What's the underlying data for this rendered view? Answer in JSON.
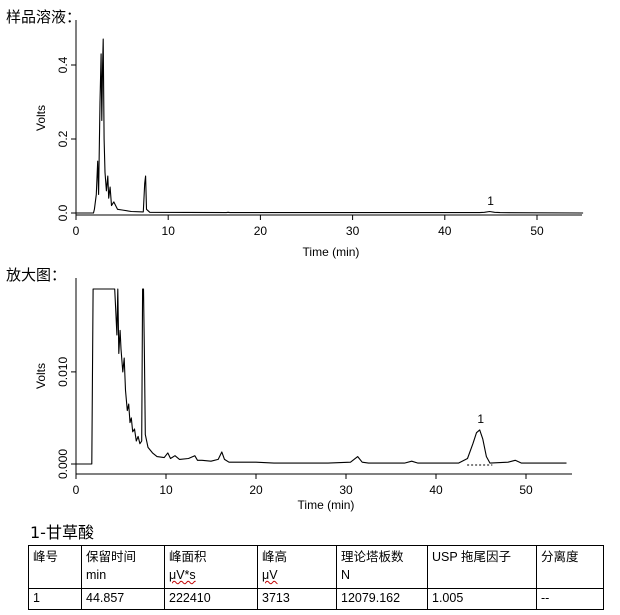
{
  "headings": {
    "sample": "样品溶液：",
    "zoom": "放大图：",
    "compound": "1-甘草酸"
  },
  "chart_data": [
    {
      "type": "line",
      "xlabel": "Time (min)",
      "ylabel": "Volts",
      "xlim": [
        0,
        55
      ],
      "ylim": [
        0,
        0.5
      ],
      "x_ticks": [
        "0",
        "10",
        "20",
        "30",
        "40",
        "50"
      ],
      "y_ticks": [
        "0.0",
        "0.2",
        "0.4"
      ],
      "peaks": [
        {
          "label": "1",
          "rt": 44.857,
          "height": 0.003
        }
      ],
      "series": [
        {
          "points": [
            [
              0,
              0.0
            ],
            [
              1.9,
              0.0
            ],
            [
              2.0,
              0.01
            ],
            [
              2.2,
              0.05
            ],
            [
              2.35,
              0.14
            ],
            [
              2.45,
              0.05
            ],
            [
              2.6,
              0.3
            ],
            [
              2.72,
              0.43
            ],
            [
              2.8,
              0.25
            ],
            [
              2.88,
              0.4
            ],
            [
              2.95,
              0.47
            ],
            [
              3.05,
              0.2
            ],
            [
              3.15,
              0.11
            ],
            [
              3.3,
              0.06
            ],
            [
              3.45,
              0.1
            ],
            [
              3.55,
              0.04
            ],
            [
              3.7,
              0.07
            ],
            [
              3.85,
              0.02
            ],
            [
              4.1,
              0.03
            ],
            [
              4.5,
              0.01
            ],
            [
              5.0,
              0.008
            ],
            [
              6.0,
              0.004
            ],
            [
              7.3,
              0.003
            ],
            [
              7.45,
              0.08
            ],
            [
              7.55,
              0.1
            ],
            [
              7.65,
              0.01
            ],
            [
              8.0,
              0.002
            ],
            [
              16.3,
              0.001
            ],
            [
              16.5,
              0.002
            ],
            [
              16.7,
              0.001
            ],
            [
              43.8,
              0.001
            ],
            [
              44.3,
              0.002
            ],
            [
              44.86,
              0.004
            ],
            [
              45.4,
              0.002
            ],
            [
              46.0,
              0.001
            ],
            [
              55,
              0.0
            ]
          ]
        }
      ]
    },
    {
      "type": "line",
      "xlabel": "Time (min)",
      "ylabel": "Volts",
      "xlim": [
        0,
        55
      ],
      "ylim": [
        -0.0012,
        0.019
      ],
      "x_ticks": [
        "0",
        "10",
        "20",
        "30",
        "40",
        "50"
      ],
      "y_ticks": [
        "0.000",
        "0.010"
      ],
      "peaks": [
        {
          "label": "1",
          "rt": 44.857,
          "height": 0.0037
        }
      ],
      "series": [
        {
          "points": [
            [
              0,
              0.0
            ],
            [
              1.75,
              0.0
            ],
            [
              1.9,
              0.019
            ],
            [
              4.3,
              0.019
            ],
            [
              4.4,
              0.017
            ],
            [
              4.55,
              0.014
            ],
            [
              4.65,
              0.019
            ],
            [
              4.75,
              0.012
            ],
            [
              4.9,
              0.0145
            ],
            [
              5.0,
              0.0125
            ],
            [
              5.2,
              0.01
            ],
            [
              5.35,
              0.0115
            ],
            [
              5.5,
              0.008
            ],
            [
              5.7,
              0.0058
            ],
            [
              5.85,
              0.0065
            ],
            [
              6.0,
              0.0045
            ],
            [
              6.15,
              0.005
            ],
            [
              6.3,
              0.0035
            ],
            [
              6.5,
              0.0038
            ],
            [
              6.7,
              0.0025
            ],
            [
              6.9,
              0.003
            ],
            [
              7.1,
              0.0022
            ],
            [
              7.3,
              0.0025
            ],
            [
              7.4,
              0.019
            ],
            [
              7.5,
              0.019
            ],
            [
              7.6,
              0.012
            ],
            [
              7.7,
              0.0032
            ],
            [
              8.0,
              0.0018
            ],
            [
              8.5,
              0.0012
            ],
            [
              9.0,
              0.0008
            ],
            [
              9.8,
              0.0007
            ],
            [
              10.2,
              0.0012
            ],
            [
              10.5,
              0.0006
            ],
            [
              11.0,
              0.0009
            ],
            [
              11.5,
              0.0005
            ],
            [
              12.5,
              0.0006
            ],
            [
              13.2,
              0.0009
            ],
            [
              13.5,
              0.0004
            ],
            [
              14.0,
              0.0004
            ],
            [
              15.0,
              0.0003
            ],
            [
              15.8,
              0.0005
            ],
            [
              16.2,
              0.0013
            ],
            [
              16.5,
              0.0005
            ],
            [
              17.0,
              0.0002
            ],
            [
              20.0,
              0.0002
            ],
            [
              22.0,
              0.0001
            ],
            [
              25.0,
              0.0001
            ],
            [
              28.0,
              0.0001
            ],
            [
              30.5,
              0.0002
            ],
            [
              31.3,
              0.0008
            ],
            [
              31.8,
              0.0002
            ],
            [
              32.5,
              0.0001
            ],
            [
              36.5,
              0.0001
            ],
            [
              37.3,
              0.0003
            ],
            [
              38.0,
              0.0001
            ],
            [
              40.5,
              0.0001
            ],
            [
              42.5,
              0.0001
            ],
            [
              43.5,
              0.0006
            ],
            [
              44.1,
              0.0022
            ],
            [
              44.5,
              0.0034
            ],
            [
              44.86,
              0.0037
            ],
            [
              45.2,
              0.0027
            ],
            [
              45.6,
              0.0008
            ],
            [
              46.0,
              0.0001
            ],
            [
              48.0,
              0.0002
            ],
            [
              48.8,
              0.0004
            ],
            [
              49.5,
              0.0001
            ],
            [
              54.5,
              0.0001
            ]
          ]
        }
      ]
    }
  ],
  "table": {
    "headers": [
      {
        "title": "峰号",
        "unit": ""
      },
      {
        "title": "保留时间",
        "unit": "min"
      },
      {
        "title": "峰面积",
        "unit": "μV*s"
      },
      {
        "title": "峰高",
        "unit": "μV"
      },
      {
        "title": "理论塔板数",
        "unit": "N"
      },
      {
        "title": "USP 拖尾因子",
        "unit": ""
      },
      {
        "title": "分离度",
        "unit": ""
      }
    ],
    "rows": [
      [
        "1",
        "44.857",
        "222410",
        "3713",
        "12079.162",
        "1.005",
        "--"
      ]
    ]
  }
}
